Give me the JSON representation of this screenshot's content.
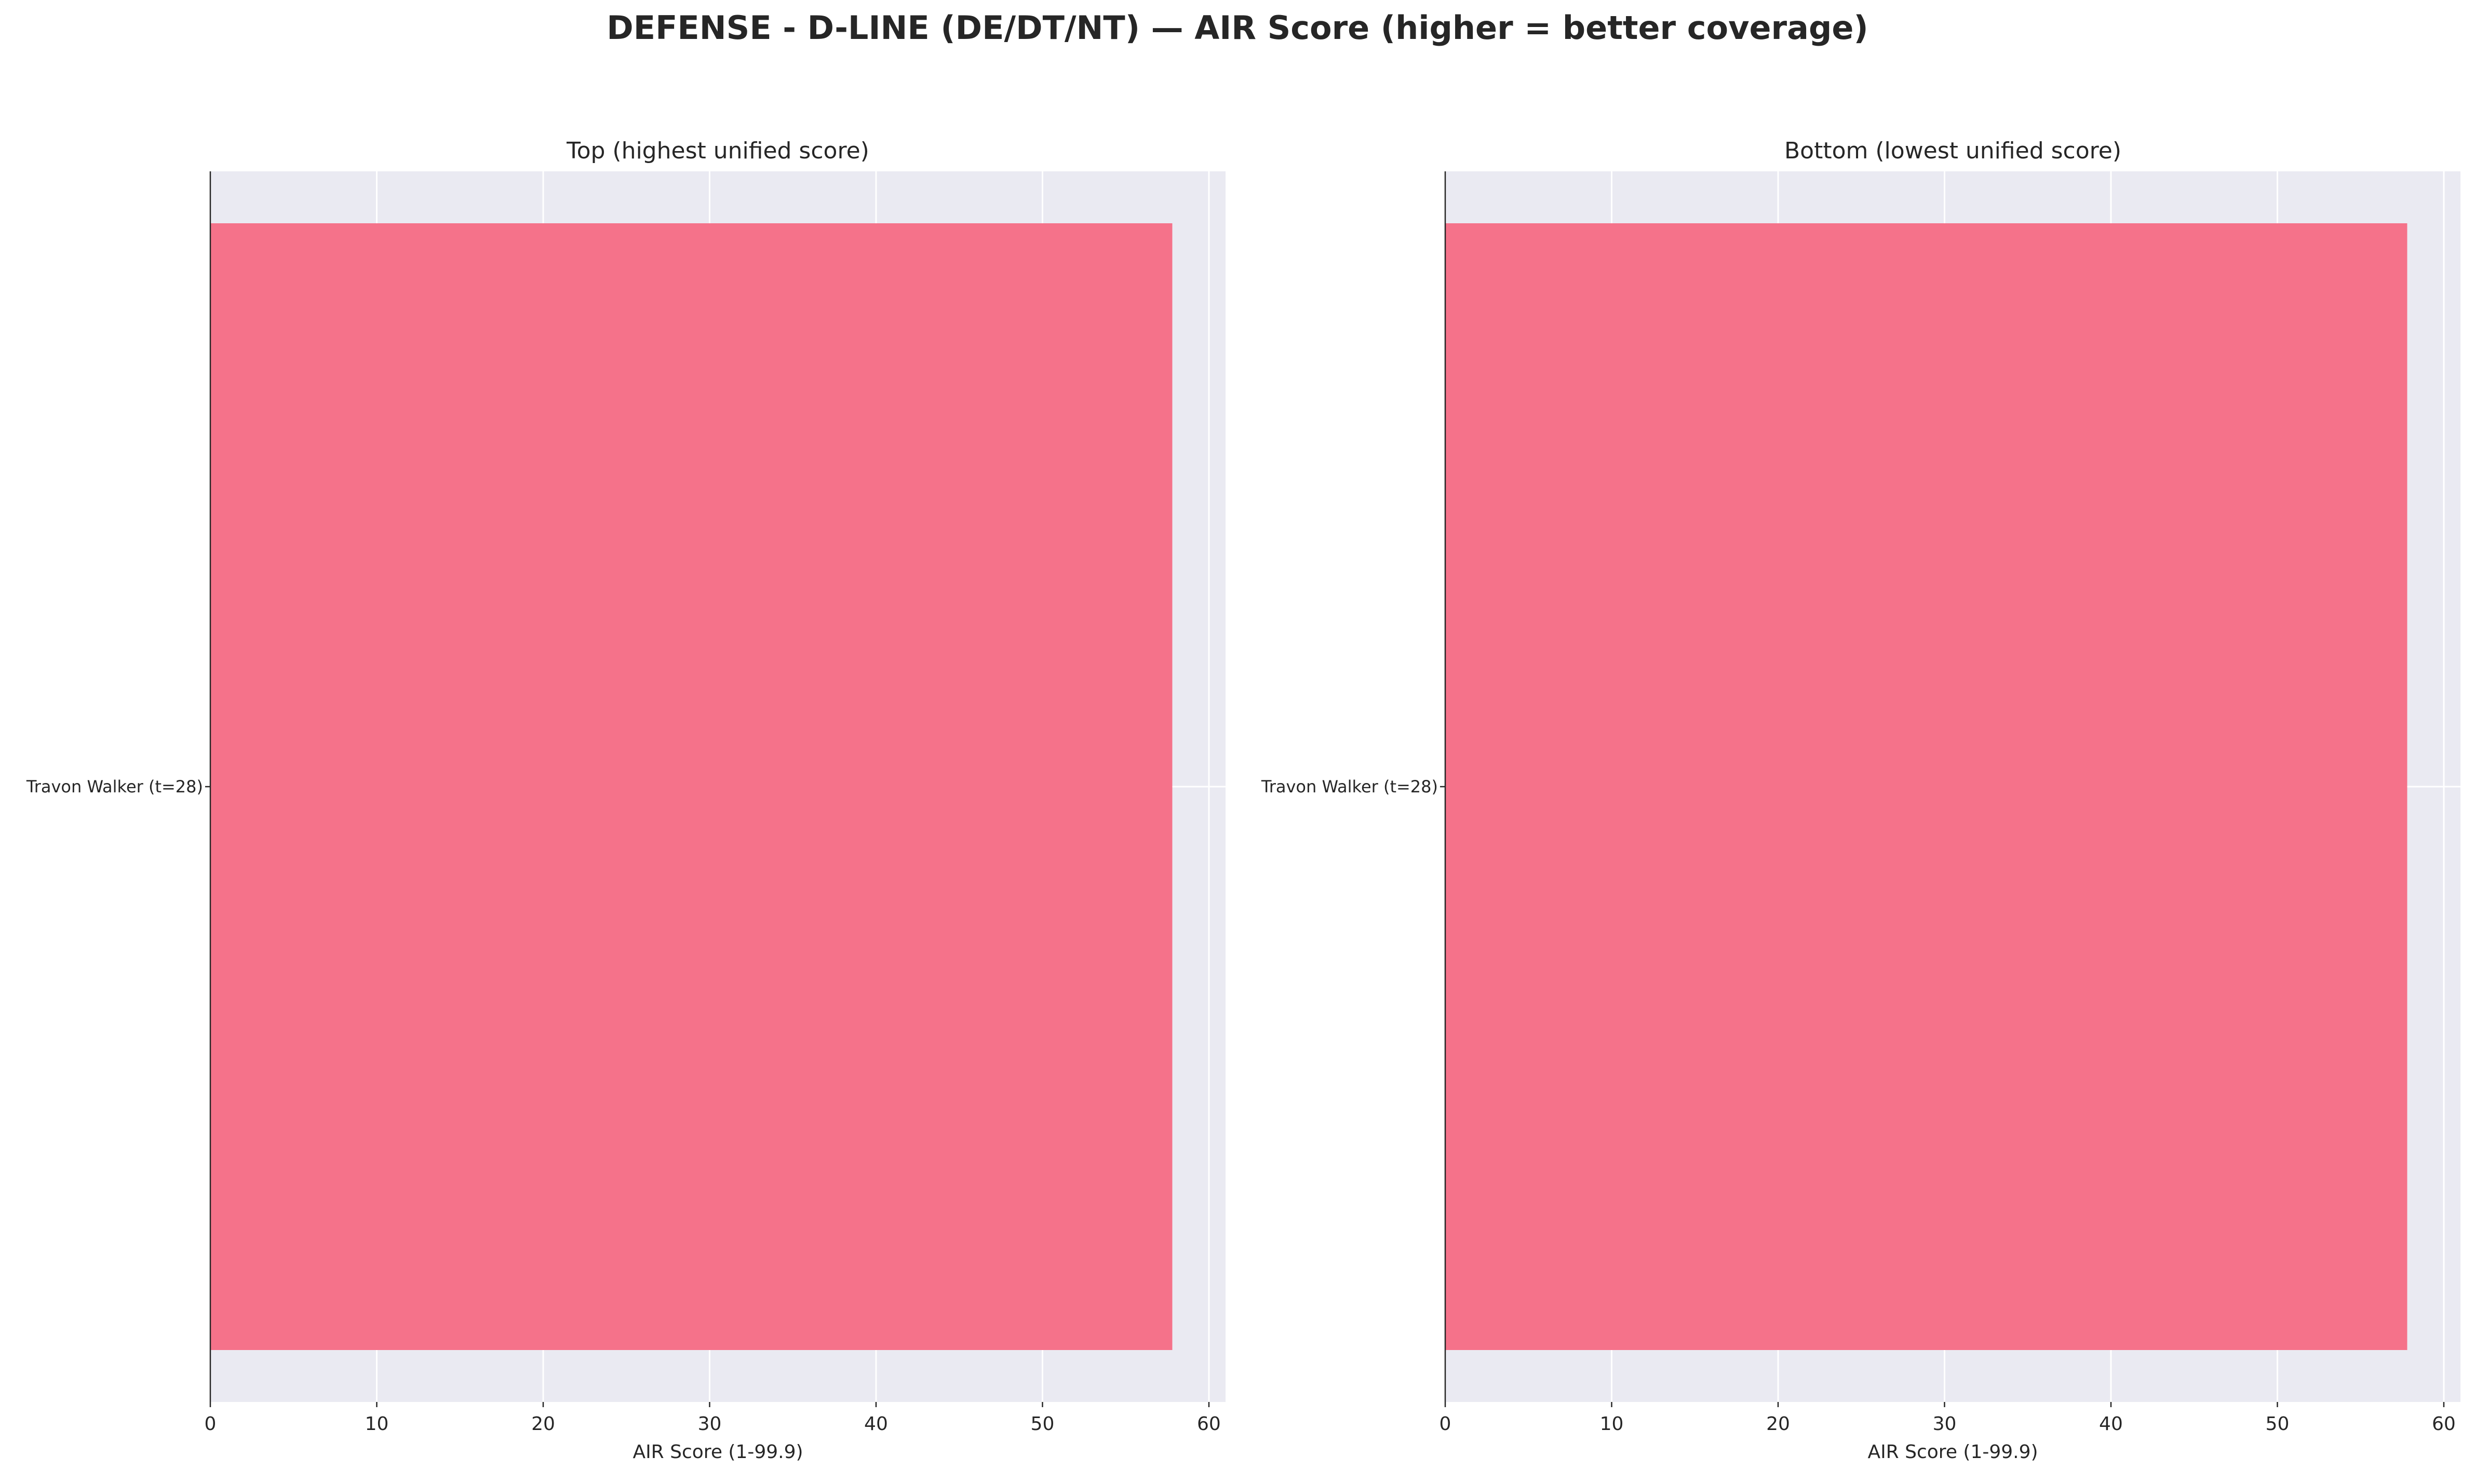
{
  "figure": {
    "title": "DEFENSE - D-LINE (DE/DT/NT) — AIR Score (higher = better coverage)"
  },
  "chart_data": [
    {
      "type": "bar",
      "orientation": "horizontal",
      "title": "Top (highest unified score)",
      "categories": [
        "Travon Walker  (t=28)"
      ],
      "values": [
        57.8
      ],
      "xlabel": "AIR Score (1-99.9)",
      "ylabel": "",
      "xlim": [
        0,
        61
      ],
      "xticks": [
        0,
        10,
        20,
        30,
        40,
        50,
        60
      ],
      "grid": true,
      "bar_color": "#f5728a",
      "background_color": "#eaeaf2"
    },
    {
      "type": "bar",
      "orientation": "horizontal",
      "title": "Bottom (lowest unified score)",
      "categories": [
        "Travon Walker  (t=28)"
      ],
      "values": [
        57.8
      ],
      "xlabel": "AIR Score (1-99.9)",
      "ylabel": "",
      "xlim": [
        0,
        61
      ],
      "xticks": [
        0,
        10,
        20,
        30,
        40,
        50,
        60
      ],
      "grid": true,
      "bar_color": "#f5728a",
      "background_color": "#eaeaf2"
    }
  ]
}
